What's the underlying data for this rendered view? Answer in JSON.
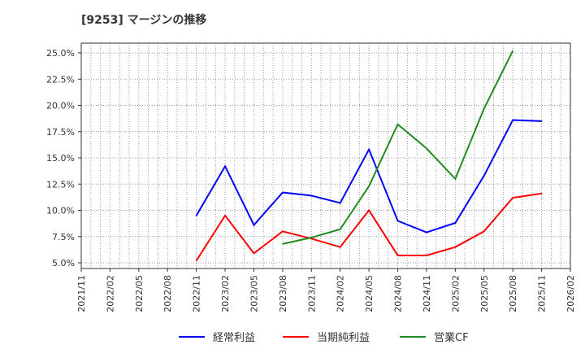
{
  "chart_data": {
    "type": "line",
    "title": "[9253]  マージンの推移",
    "xlabel": "",
    "ylabel": "",
    "x_ticks": [
      "2021/11",
      "2022/02",
      "2022/05",
      "2022/08",
      "2022/11",
      "2023/02",
      "2023/05",
      "2023/08",
      "2023/11",
      "2024/02",
      "2024/05",
      "2024/08",
      "2024/11",
      "2025/02",
      "2025/05",
      "2025/08",
      "2025/11",
      "2026/02"
    ],
    "y_ticks": [
      "5.0%",
      "7.5%",
      "10.0%",
      "12.5%",
      "15.0%",
      "17.5%",
      "20.0%",
      "22.5%",
      "25.0%"
    ],
    "ylim": [
      4.5,
      26.0
    ],
    "grid": true,
    "legend_position": "bottom",
    "series": [
      {
        "name": "経常利益",
        "color": "#0000ff",
        "start_index": 4,
        "values": [
          9.5,
          14.2,
          8.6,
          11.7,
          11.4,
          10.7,
          15.8,
          9.0,
          7.9,
          8.8,
          13.3,
          18.6,
          18.5
        ]
      },
      {
        "name": "当期純利益",
        "color": "#ff0000",
        "start_index": 4,
        "values": [
          5.2,
          9.5,
          5.9,
          8.0,
          7.3,
          6.5,
          10.0,
          5.7,
          5.7,
          6.5,
          8.0,
          11.2,
          11.6
        ]
      },
      {
        "name": "営業CF",
        "color": "#228b22",
        "start_index": 7,
        "values": [
          6.8,
          7.4,
          8.2,
          12.3,
          18.2,
          15.9,
          13.0,
          19.7,
          25.2
        ]
      }
    ]
  }
}
